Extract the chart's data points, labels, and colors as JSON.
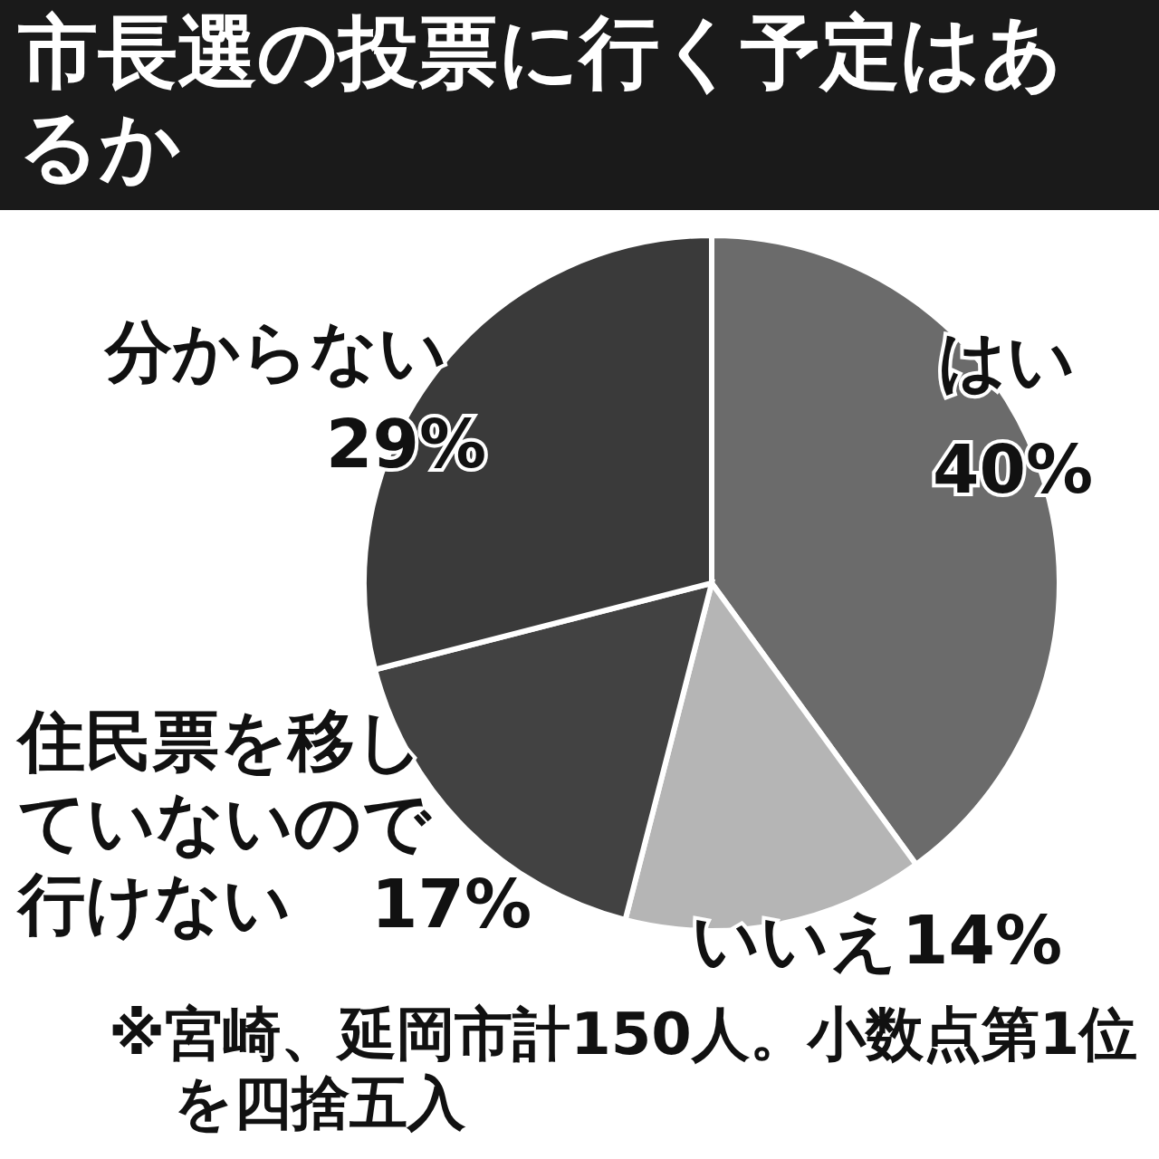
{
  "chart_data": {
    "type": "pie",
    "title": "市長選の投票に行く予定はあるか",
    "categories": [
      "はい",
      "いいえ",
      "住民票を移していないので行けない",
      "分からない"
    ],
    "values": [
      40,
      14,
      17,
      29
    ],
    "value_labels": [
      "40%",
      "14%",
      "17%",
      "29%"
    ],
    "colors": [
      "#6b6b6b",
      "#b5b5b5",
      "#424242",
      "#3a3a3a"
    ],
    "annotations": [
      "※宮崎、延岡市計150人。小数点第1位を四捨五入"
    ]
  }
}
